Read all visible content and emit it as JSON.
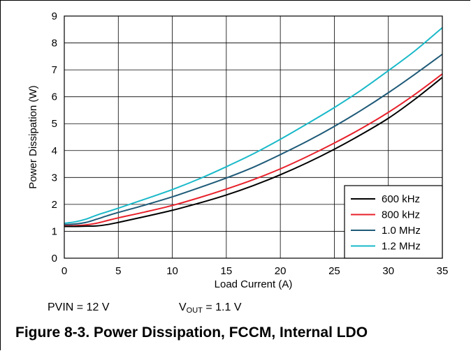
{
  "chart_data": {
    "type": "line",
    "xlabel": "Load Current (A)",
    "ylabel": "Power Dissipation (W)",
    "xlim": [
      0,
      35
    ],
    "ylim": [
      0,
      9
    ],
    "x_ticks": [
      0,
      5,
      10,
      15,
      20,
      25,
      30,
      35
    ],
    "y_ticks": [
      0,
      1,
      2,
      3,
      4,
      5,
      6,
      7,
      8,
      9
    ],
    "grid": true,
    "legend_position": "bottom-right",
    "series": [
      {
        "name": "600 kHz",
        "color": "#000000",
        "x": [
          0,
          1,
          2,
          3,
          4,
          5,
          7.5,
          10,
          12.5,
          15,
          17.5,
          20,
          22.5,
          25,
          27.5,
          30,
          32.5,
          35
        ],
        "y": [
          1.18,
          1.18,
          1.19,
          1.2,
          1.25,
          1.33,
          1.55,
          1.78,
          2.05,
          2.35,
          2.7,
          3.1,
          3.55,
          4.05,
          4.6,
          5.2,
          5.92,
          6.72
        ]
      },
      {
        "name": "800 kHz",
        "color": "#e8212b",
        "x": [
          0,
          1,
          2,
          3,
          4,
          5,
          7.5,
          10,
          12.5,
          15,
          17.5,
          20,
          22.5,
          25,
          27.5,
          30,
          32.5,
          35
        ],
        "y": [
          1.2,
          1.21,
          1.24,
          1.3,
          1.4,
          1.5,
          1.72,
          1.96,
          2.25,
          2.57,
          2.92,
          3.32,
          3.78,
          4.28,
          4.82,
          5.42,
          6.1,
          6.85
        ]
      },
      {
        "name": "1.0 MHz",
        "color": "#1e5a78",
        "x": [
          0,
          1,
          2,
          3,
          4,
          5,
          7.5,
          10,
          12.5,
          15,
          17.5,
          20,
          22.5,
          25,
          27.5,
          30,
          32.5,
          35
        ],
        "y": [
          1.25,
          1.27,
          1.33,
          1.45,
          1.58,
          1.7,
          1.98,
          2.28,
          2.62,
          2.98,
          3.38,
          3.85,
          4.35,
          4.9,
          5.5,
          6.15,
          6.85,
          7.58
        ]
      },
      {
        "name": "1.2 MHz",
        "color": "#19b9c9",
        "x": [
          0,
          1,
          2,
          3,
          4,
          5,
          7.5,
          10,
          12.5,
          15,
          17.5,
          20,
          22.5,
          25,
          27.5,
          30,
          32.5,
          35
        ],
        "y": [
          1.3,
          1.35,
          1.45,
          1.6,
          1.73,
          1.86,
          2.2,
          2.55,
          2.95,
          3.4,
          3.88,
          4.42,
          5.0,
          5.6,
          6.25,
          6.97,
          7.72,
          8.57
        ]
      }
    ]
  },
  "conditions": {
    "pvin": "PVIN = 12 V",
    "vout_prefix": "V",
    "vout_sub": "OUT",
    "vout_suffix": " = 1.1 V"
  },
  "caption": "Figure 8-3. Power Dissipation, FCCM, Internal LDO"
}
